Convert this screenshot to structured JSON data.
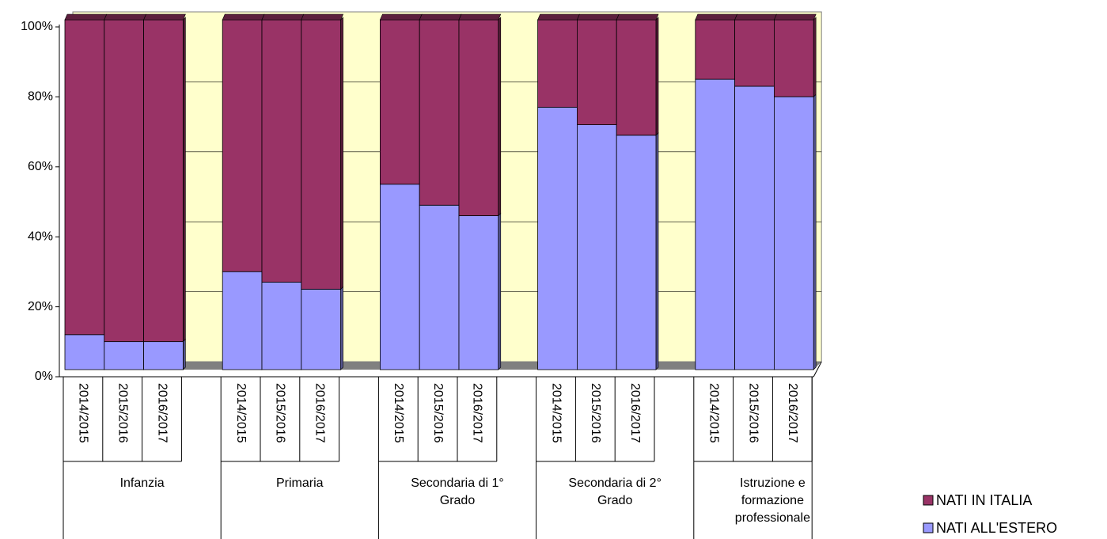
{
  "chart_data": {
    "type": "stacked-bar-3d",
    "groups": [
      "Infanzia",
      "Primaria",
      "Secondaria di 1° Grado",
      "Secondaria di 2° Grado",
      "Istruzione e formazione professionale"
    ],
    "categories": [
      "2014/2015",
      "2015/2016",
      "2016/2017",
      "2014/2015",
      "2015/2016",
      "2016/2017",
      "2014/2015",
      "2015/2016",
      "2016/2017",
      "2014/2015",
      "2015/2016",
      "2016/2017",
      "2014/2015",
      "2015/2016",
      "2016/2017"
    ],
    "series": [
      {
        "name": "NATI ALL'ESTERO",
        "color": "#9999ff",
        "values": [
          10,
          8,
          8,
          28,
          25,
          23,
          53,
          47,
          44,
          75,
          70,
          67,
          83,
          81,
          78
        ]
      },
      {
        "name": "NATI IN ITALIA",
        "color": "#993366",
        "values": [
          90,
          92,
          92,
          72,
          75,
          77,
          47,
          53,
          56,
          25,
          30,
          33,
          17,
          19,
          22
        ]
      }
    ],
    "ylim": [
      0,
      100
    ],
    "yticks": [
      {
        "value": 0,
        "label": "0%"
      },
      {
        "value": 20,
        "label": "20%"
      },
      {
        "value": 40,
        "label": "40%"
      },
      {
        "value": 60,
        "label": "60%"
      },
      {
        "value": 80,
        "label": "80%"
      },
      {
        "value": 100,
        "label": "100%"
      }
    ],
    "grid": true,
    "legend": "bottom-right"
  }
}
